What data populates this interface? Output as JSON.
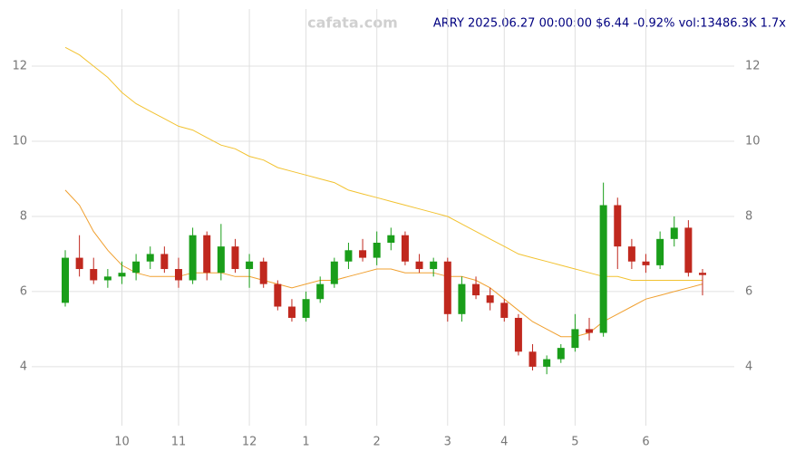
{
  "chart_data": {
    "type": "candlestick",
    "watermark": "cafata.com",
    "title": "ARRY 2025.06.27 00:00:00 $6.44 -0.92% vol:13486.3K 1.7x",
    "categories": [
      null,
      null,
      null,
      null,
      "10",
      null,
      null,
      null,
      "11",
      null,
      null,
      null,
      null,
      "12",
      null,
      null,
      null,
      "1",
      null,
      null,
      null,
      null,
      "2",
      null,
      null,
      null,
      null,
      "3",
      null,
      null,
      null,
      "4",
      null,
      null,
      null,
      null,
      "5",
      null,
      null,
      null,
      null,
      "6",
      null,
      null,
      null,
      null
    ],
    "open": [
      5.7,
      6.9,
      6.6,
      6.3,
      6.4,
      6.5,
      6.8,
      7.0,
      6.6,
      6.3,
      7.5,
      6.5,
      7.2,
      6.6,
      6.8,
      6.2,
      5.6,
      5.3,
      5.8,
      6.2,
      6.8,
      7.1,
      6.9,
      7.3,
      7.5,
      6.8,
      6.6,
      6.8,
      5.4,
      6.2,
      5.9,
      5.7,
      5.3,
      4.4,
      4.0,
      4.2,
      4.5,
      5.0,
      4.9,
      8.3,
      7.2,
      6.8,
      6.7,
      7.4,
      7.7,
      6.5
    ],
    "high": [
      7.1,
      7.5,
      6.9,
      6.6,
      6.8,
      7.0,
      7.2,
      7.2,
      6.9,
      7.7,
      7.6,
      7.8,
      7.4,
      7.0,
      6.9,
      6.3,
      5.8,
      6.0,
      6.4,
      6.9,
      7.3,
      7.4,
      7.6,
      7.7,
      7.6,
      7.0,
      6.9,
      6.9,
      6.4,
      6.4,
      6.1,
      5.8,
      5.4,
      4.6,
      4.3,
      4.6,
      5.4,
      5.3,
      8.9,
      8.5,
      7.4,
      7.0,
      7.6,
      8.0,
      7.9,
      6.6
    ],
    "low": [
      5.6,
      6.4,
      6.2,
      6.1,
      6.2,
      6.3,
      6.6,
      6.5,
      6.1,
      6.2,
      6.3,
      6.3,
      6.5,
      6.1,
      6.1,
      5.5,
      5.2,
      5.2,
      5.7,
      6.1,
      6.6,
      6.8,
      6.7,
      7.1,
      6.7,
      6.5,
      6.4,
      5.2,
      5.2,
      5.8,
      5.5,
      5.2,
      4.3,
      3.9,
      3.8,
      4.1,
      4.4,
      4.7,
      4.8,
      6.6,
      6.6,
      6.5,
      6.6,
      7.2,
      6.4,
      5.9
    ],
    "close": [
      6.9,
      6.6,
      6.3,
      6.4,
      6.5,
      6.8,
      7.0,
      6.6,
      6.3,
      7.5,
      6.5,
      7.2,
      6.6,
      6.8,
      6.2,
      5.6,
      5.3,
      5.8,
      6.2,
      6.8,
      7.1,
      6.9,
      7.3,
      7.5,
      6.8,
      6.6,
      6.8,
      5.4,
      6.2,
      5.9,
      5.7,
      5.3,
      4.4,
      4.0,
      4.2,
      4.5,
      5.0,
      4.9,
      8.3,
      7.2,
      6.8,
      6.7,
      7.4,
      7.7,
      6.5,
      6.44
    ],
    "up_color": "#1a9e1a",
    "down_color": "#c0281e",
    "series": [
      {
        "color": "#f2c230",
        "values": [
          12.5,
          12.3,
          12.0,
          11.7,
          11.3,
          11.0,
          10.8,
          10.6,
          10.4,
          10.3,
          10.1,
          9.9,
          9.8,
          9.6,
          9.5,
          9.3,
          9.2,
          9.1,
          9.0,
          8.9,
          8.7,
          8.6,
          8.5,
          8.4,
          8.3,
          8.2,
          8.1,
          8.0,
          7.8,
          7.6,
          7.4,
          7.2,
          7.0,
          6.9,
          6.8,
          6.7,
          6.6,
          6.5,
          6.4,
          6.4,
          6.3,
          6.3,
          6.3,
          6.3,
          6.3,
          6.3
        ]
      },
      {
        "color": "#f0a030",
        "values": [
          8.7,
          8.3,
          7.6,
          7.1,
          6.7,
          6.5,
          6.4,
          6.4,
          6.4,
          6.5,
          6.5,
          6.5,
          6.4,
          6.4,
          6.3,
          6.2,
          6.1,
          6.2,
          6.3,
          6.3,
          6.4,
          6.5,
          6.6,
          6.6,
          6.5,
          6.5,
          6.5,
          6.4,
          6.4,
          6.3,
          6.1,
          5.8,
          5.5,
          5.2,
          5.0,
          4.8,
          4.8,
          4.9,
          5.2,
          5.4,
          5.6,
          5.8,
          5.9,
          6.0,
          6.1,
          6.2
        ]
      }
    ],
    "ylim": [
      2.43,
      13.52
    ],
    "yticks": [
      4,
      6,
      8,
      10,
      12
    ],
    "grid": true
  }
}
